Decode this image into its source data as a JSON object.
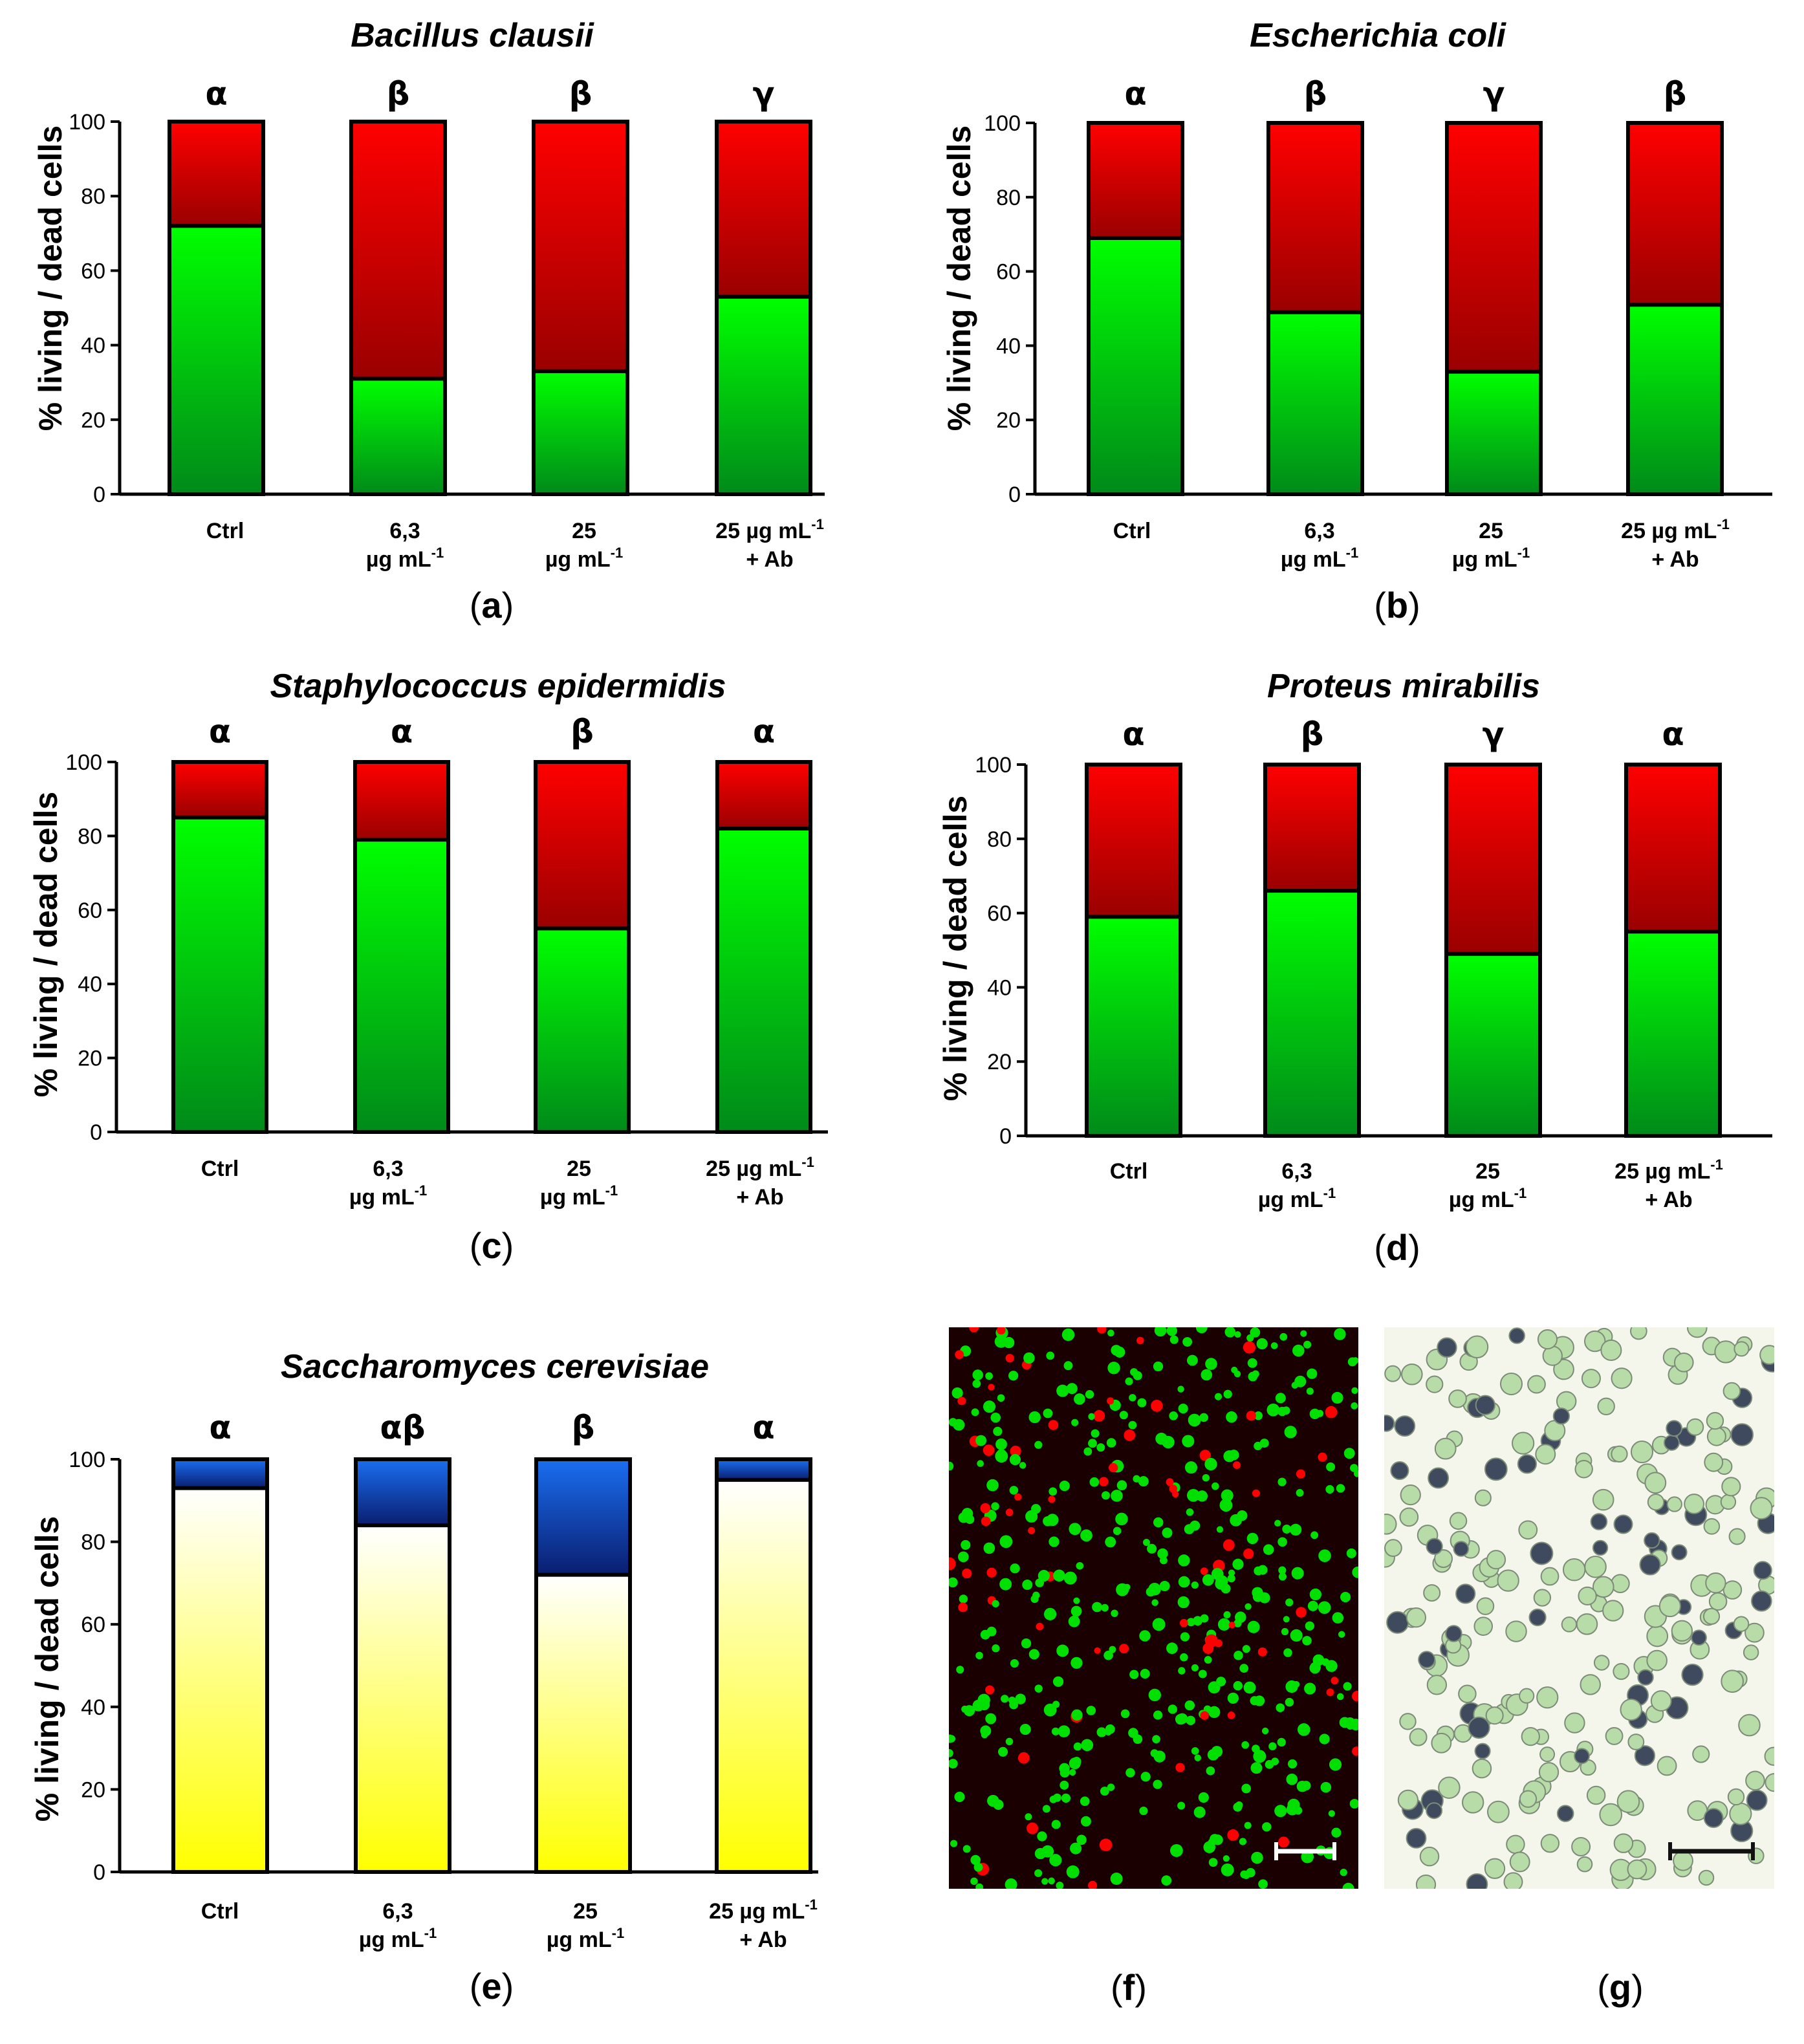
{
  "chart_data": [
    {
      "type": "bar",
      "stacked": true,
      "panel_label": "a",
      "title": "Bacillus clausii",
      "ylabel": "% living / dead cells",
      "ylim": [
        0,
        100
      ],
      "yticks": [
        0,
        20,
        40,
        60,
        80,
        100
      ],
      "categories": [
        {
          "lines": [
            "Ctrl"
          ]
        },
        {
          "lines": [
            "6,3",
            "µg mL-1"
          ]
        },
        {
          "lines": [
            "25",
            "µg mL-1"
          ]
        },
        {
          "lines": [
            "25 µg mL-1",
            "+ Ab"
          ]
        }
      ],
      "significance": [
        "α",
        "β",
        "β",
        "γ"
      ],
      "series": [
        {
          "name": "living",
          "values": [
            72,
            31,
            33,
            53
          ],
          "color": "#00e000"
        },
        {
          "name": "dead",
          "values": [
            28,
            69,
            67,
            47
          ],
          "color": "#ff0000"
        }
      ]
    },
    {
      "type": "bar",
      "stacked": true,
      "panel_label": "b",
      "title": "Escherichia coli",
      "ylabel": "% living / dead cells",
      "ylim": [
        0,
        100
      ],
      "yticks": [
        0,
        20,
        40,
        60,
        80,
        100
      ],
      "categories": [
        {
          "lines": [
            "Ctrl"
          ]
        },
        {
          "lines": [
            "6,3",
            "µg mL-1"
          ]
        },
        {
          "lines": [
            "25",
            "µg mL-1"
          ]
        },
        {
          "lines": [
            "25 µg mL-1",
            "+ Ab"
          ]
        }
      ],
      "significance": [
        "α",
        "β",
        "γ",
        "β"
      ],
      "series": [
        {
          "name": "living",
          "values": [
            69,
            49,
            33,
            51
          ],
          "color": "#00e000"
        },
        {
          "name": "dead",
          "values": [
            31,
            51,
            67,
            49
          ],
          "color": "#ff0000"
        }
      ]
    },
    {
      "type": "bar",
      "stacked": true,
      "panel_label": "c",
      "title": "Staphylococcus epidermidis",
      "ylabel": "% living / dead cells",
      "ylim": [
        0,
        100
      ],
      "yticks": [
        0,
        20,
        40,
        60,
        80,
        100
      ],
      "categories": [
        {
          "lines": [
            "Ctrl"
          ]
        },
        {
          "lines": [
            "6,3",
            "µg mL-1"
          ]
        },
        {
          "lines": [
            "25",
            "µg mL-1"
          ]
        },
        {
          "lines": [
            "25 µg mL-1",
            "+ Ab"
          ]
        }
      ],
      "significance": [
        "α",
        "α",
        "β",
        "α"
      ],
      "series": [
        {
          "name": "living",
          "values": [
            85,
            79,
            55,
            82
          ],
          "color": "#00e000"
        },
        {
          "name": "dead",
          "values": [
            15,
            21,
            45,
            18
          ],
          "color": "#ff0000"
        }
      ]
    },
    {
      "type": "bar",
      "stacked": true,
      "panel_label": "d",
      "title": "Proteus mirabilis",
      "ylabel": "% living / dead cells",
      "ylim": [
        0,
        100
      ],
      "yticks": [
        0,
        20,
        40,
        60,
        80,
        100
      ],
      "categories": [
        {
          "lines": [
            "Ctrl"
          ]
        },
        {
          "lines": [
            "6,3",
            "µg mL-1"
          ]
        },
        {
          "lines": [
            "25",
            "µg mL-1"
          ]
        },
        {
          "lines": [
            "25 µg mL-1",
            "+ Ab"
          ]
        }
      ],
      "significance": [
        "α",
        "β",
        "γ",
        "α"
      ],
      "series": [
        {
          "name": "living",
          "values": [
            59,
            66,
            49,
            55
          ],
          "color": "#00e000"
        },
        {
          "name": "dead",
          "values": [
            41,
            34,
            51,
            45
          ],
          "color": "#ff0000"
        }
      ]
    },
    {
      "type": "bar",
      "stacked": true,
      "panel_label": "e",
      "title": "Saccharomyces cerevisiae",
      "ylabel": "% living / dead cells",
      "ylim": [
        0,
        100
      ],
      "yticks": [
        0,
        20,
        40,
        60,
        80,
        100
      ],
      "categories": [
        {
          "lines": [
            "Ctrl"
          ]
        },
        {
          "lines": [
            "6,3",
            "µg mL-1"
          ]
        },
        {
          "lines": [
            "25",
            "µg mL-1"
          ]
        },
        {
          "lines": [
            "25 µg mL-1",
            "+ Ab"
          ]
        }
      ],
      "significance": [
        "α",
        "αβ",
        "β",
        "α"
      ],
      "series": [
        {
          "name": "living",
          "values": [
            93,
            84,
            72,
            95
          ],
          "color": "#ffff00"
        },
        {
          "name": "dead",
          "values": [
            7,
            16,
            28,
            5
          ],
          "color": "#1040c0"
        }
      ]
    }
  ],
  "micrographs": [
    {
      "panel_label": "f",
      "background": "#1a0000",
      "colors": [
        "#00e000",
        "#ff0000"
      ]
    },
    {
      "panel_label": "g",
      "background": "#f4f6ec",
      "colors": [
        "#b8dca8",
        "#404a5e"
      ]
    }
  ]
}
